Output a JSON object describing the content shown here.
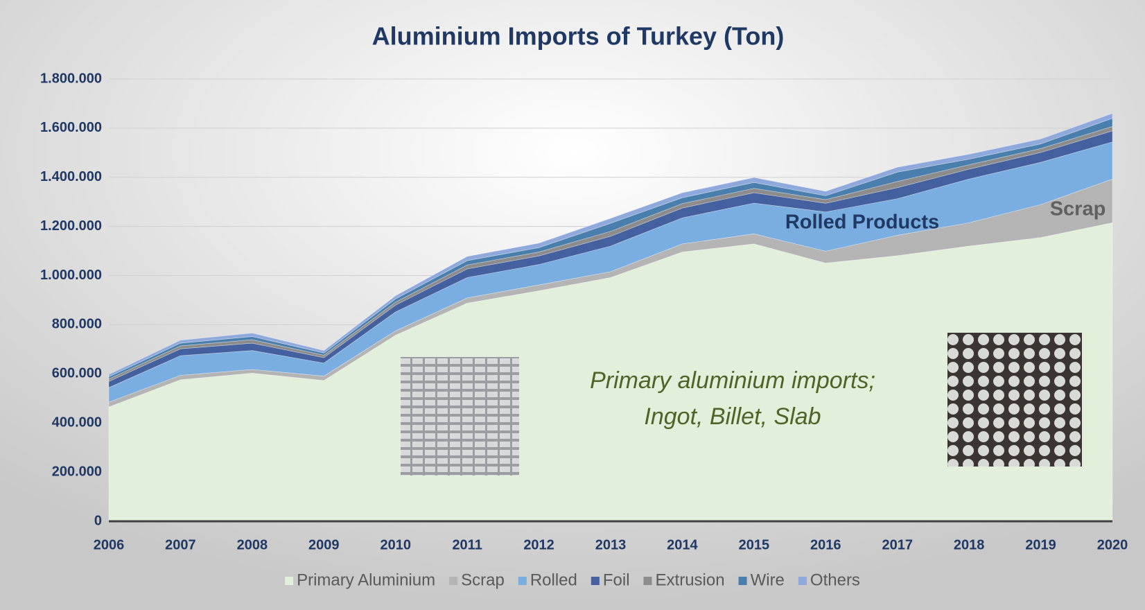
{
  "chart_data": {
    "type": "stacked_area",
    "title": "Aluminium Imports of Turkey (Ton)",
    "categories": [
      "2006",
      "2007",
      "2008",
      "2009",
      "2010",
      "2011",
      "2012",
      "2013",
      "2014",
      "2015",
      "2016",
      "2017",
      "2018",
      "2019",
      "2020"
    ],
    "series": [
      {
        "name": "Primary Aluminium",
        "color": "#e2efda",
        "values": [
          465000,
          576000,
          603000,
          573000,
          757000,
          888000,
          938000,
          992000,
          1096000,
          1129000,
          1051000,
          1081000,
          1120000,
          1155000,
          1215000
        ]
      },
      {
        "name": "Scrap",
        "color": "#b4b4b4",
        "values": [
          20000,
          18000,
          15000,
          18000,
          18000,
          21000,
          24000,
          24000,
          33000,
          41000,
          48000,
          83000,
          95000,
          134000,
          178000
        ]
      },
      {
        "name": "Rolled",
        "color": "#7aaee0",
        "values": [
          59000,
          80000,
          77000,
          53000,
          77000,
          83000,
          83000,
          104000,
          106000,
          125000,
          160000,
          149000,
          178000,
          172000,
          151000
        ]
      },
      {
        "name": "Foil",
        "color": "#44609e",
        "values": [
          25000,
          28000,
          30000,
          22000,
          28000,
          35000,
          35000,
          40000,
          40000,
          42000,
          35000,
          45000,
          40000,
          40000,
          45000
        ]
      },
      {
        "name": "Extrusion",
        "color": "#8c8c8c",
        "values": [
          10000,
          12000,
          14000,
          10000,
          12000,
          16000,
          16000,
          20000,
          18000,
          18000,
          15000,
          25000,
          18000,
          16000,
          18000
        ]
      },
      {
        "name": "Wire",
        "color": "#4a7fad",
        "values": [
          9000,
          11000,
          13000,
          9000,
          13000,
          18000,
          18000,
          33000,
          24000,
          24000,
          16000,
          38000,
          23000,
          19000,
          33000
        ]
      },
      {
        "name": "Others",
        "color": "#8fa9dc",
        "values": [
          10000,
          12000,
          14000,
          10000,
          13000,
          17000,
          18000,
          20000,
          20000,
          20000,
          18000,
          20000,
          20000,
          20000,
          20000
        ]
      }
    ],
    "ylim": [
      0,
      1800000
    ],
    "yticks": [
      0,
      {
        "value": 200000,
        "label": "200.000"
      },
      {
        "value": 400000,
        "label": "400.000"
      },
      {
        "value": 600000,
        "label": "600.000"
      },
      {
        "value": 800000,
        "label": "800.000"
      },
      {
        "value": 1000000,
        "label": "1.000.000"
      },
      {
        "value": 1200000,
        "label": "1.200.000"
      },
      {
        "value": 1400000,
        "label": "1.400.000"
      },
      {
        "value": 1600000,
        "label": "1.600.000"
      },
      {
        "value": 1800000,
        "label": "1.800.000"
      }
    ],
    "grid": true,
    "legend": "bottom",
    "annotations": {
      "rolled": "Rolled Products",
      "scrap": "Scrap",
      "primary": [
        "Primary aluminium imports;",
        "Ingot, Billet, Slab"
      ]
    }
  }
}
